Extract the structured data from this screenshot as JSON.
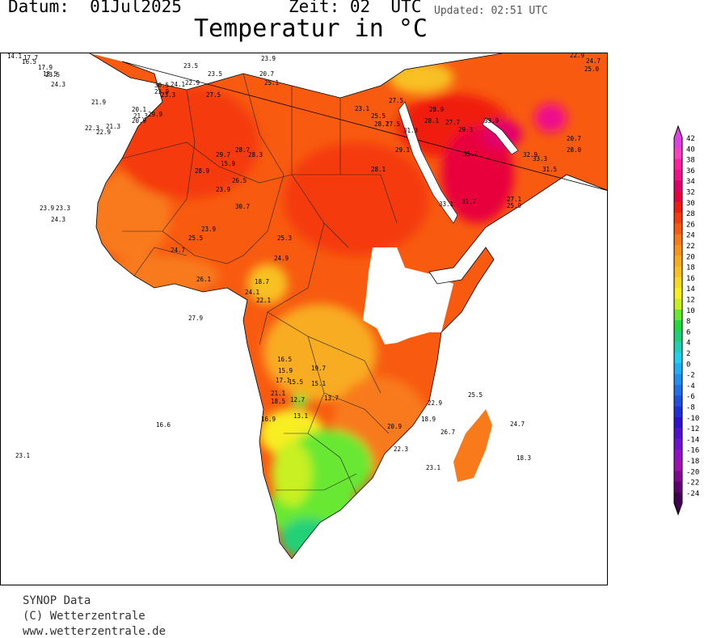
{
  "header": {
    "date": "Datum:  01Jul2025",
    "time": "Zeit: 02  UTC",
    "updated": "Updated: 02:51 UTC",
    "title": "Temperatur in °C"
  },
  "footer": {
    "line1": "SYNOP Data",
    "line2": "(C) Wetterzentrale",
    "line3": "www.wetterzentrale.de"
  },
  "legend": {
    "labels": [
      "42",
      "40",
      "38",
      "36",
      "34",
      "32",
      "30",
      "28",
      "26",
      "24",
      "22",
      "20",
      "18",
      "16",
      "14",
      "12",
      "10",
      "8",
      "6",
      "4",
      "2",
      "0",
      "-2",
      "-4",
      "-6",
      "-8",
      "-10",
      "-12",
      "-14",
      "-16",
      "-18",
      "-20",
      "-22",
      "-24"
    ],
    "colors": [
      "#e040e0",
      "#ff40c0",
      "#ff20a0",
      "#f0108a",
      "#e0006a",
      "#e8003c",
      "#f01c10",
      "#f53a10",
      "#f85a10",
      "#f87a1a",
      "#f8941e",
      "#f8ac20",
      "#f8c020",
      "#f8d820",
      "#f8ee20",
      "#c8f020",
      "#68e830",
      "#20d840",
      "#20d078",
      "#20d0b8",
      "#20d0f0",
      "#20b0f8",
      "#2090f0",
      "#2070e8",
      "#2050e0",
      "#2030d8",
      "#3010d0",
      "#5010d0",
      "#7010d0",
      "#9010c8",
      "#a010b0",
      "#800890",
      "#600070",
      "#400050"
    ]
  },
  "stations": [
    {
      "v": "14.1"
    },
    {
      "v": "17.7"
    },
    {
      "v": "16.5"
    },
    {
      "v": "17.9"
    },
    {
      "v": "18.5"
    },
    {
      "v": "23.5"
    },
    {
      "v": "24.3"
    },
    {
      "v": "21.9"
    },
    {
      "v": "29.9"
    },
    {
      "v": "20.1"
    },
    {
      "v": "21.3"
    },
    {
      "v": "20.9"
    },
    {
      "v": "22.3"
    },
    {
      "v": "21.3"
    },
    {
      "v": "22.9"
    },
    {
      "v": "27.5"
    },
    {
      "v": "23.9"
    },
    {
      "v": "23.3"
    },
    {
      "v": "30.5"
    },
    {
      "v": "24.1"
    },
    {
      "v": "22.9"
    },
    {
      "v": "23.5"
    },
    {
      "v": "23.5"
    },
    {
      "v": "25.1"
    },
    {
      "v": "20.7"
    },
    {
      "v": "29.7"
    },
    {
      "v": "28.7"
    },
    {
      "v": "28.3"
    },
    {
      "v": "15.9"
    },
    {
      "v": "28.9"
    },
    {
      "v": "26.5"
    },
    {
      "v": "23.9"
    },
    {
      "v": "30.7"
    },
    {
      "v": "23.9"
    },
    {
      "v": "25.5"
    },
    {
      "v": "24.7"
    },
    {
      "v": "25.3"
    },
    {
      "v": "24.9"
    },
    {
      "v": "26.1"
    },
    {
      "v": "18.7"
    },
    {
      "v": "24.1"
    },
    {
      "v": "22.1"
    },
    {
      "v": "27.9"
    },
    {
      "v": "23.9"
    },
    {
      "v": "23.3"
    },
    {
      "v": "24.3"
    },
    {
      "v": "23.1"
    },
    {
      "v": "16.6"
    },
    {
      "v": "16.5"
    },
    {
      "v": "15.9"
    },
    {
      "v": "17.1"
    },
    {
      "v": "15.5"
    },
    {
      "v": "19.7"
    },
    {
      "v": "15.1"
    },
    {
      "v": "21.1"
    },
    {
      "v": "18.5"
    },
    {
      "v": "12.7"
    },
    {
      "v": "13.7"
    },
    {
      "v": "16.9"
    },
    {
      "v": "13.1"
    },
    {
      "v": "20.9"
    },
    {
      "v": "22.3"
    },
    {
      "v": "18.9"
    },
    {
      "v": "22.9"
    },
    {
      "v": "26.7"
    },
    {
      "v": "25.5"
    },
    {
      "v": "24.7"
    },
    {
      "v": "23.1"
    },
    {
      "v": "18.3"
    },
    {
      "v": "23.1"
    },
    {
      "v": "25.5"
    },
    {
      "v": "28.7"
    },
    {
      "v": "27.5"
    },
    {
      "v": "31.3"
    },
    {
      "v": "28.9"
    },
    {
      "v": "28.1"
    },
    {
      "v": "27.7"
    },
    {
      "v": "29.3"
    },
    {
      "v": "33.0"
    },
    {
      "v": "35.7"
    },
    {
      "v": "32.9"
    },
    {
      "v": "33.3"
    },
    {
      "v": "31.5"
    },
    {
      "v": "27.1"
    },
    {
      "v": "25.9"
    },
    {
      "v": "31.7"
    },
    {
      "v": "33.1"
    },
    {
      "v": "29.1"
    },
    {
      "v": "28.1"
    },
    {
      "v": "27.5"
    },
    {
      "v": "23.9"
    },
    {
      "v": "20.7"
    },
    {
      "v": "28.0"
    },
    {
      "v": "25.0"
    },
    {
      "v": "22.9"
    },
    {
      "v": "24.7"
    },
    {
      "v": "21.9"
    }
  ]
}
